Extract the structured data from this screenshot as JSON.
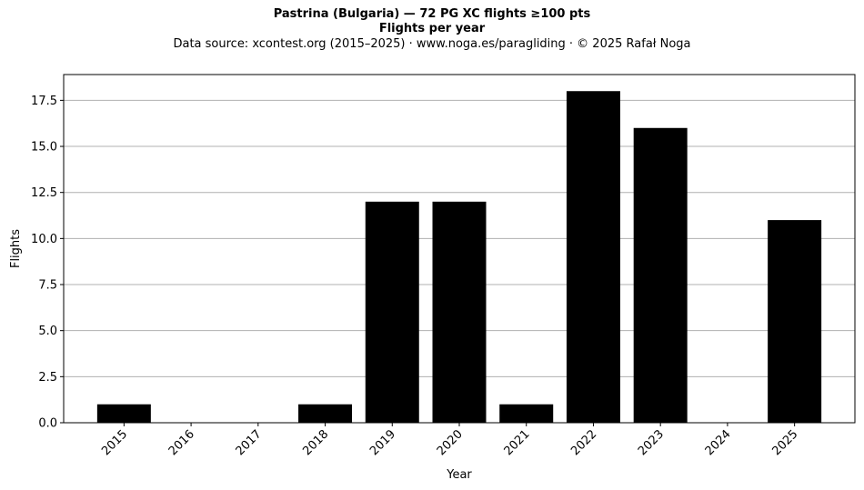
{
  "chart_data": {
    "type": "bar",
    "title": "Pastrina (Bulgaria)  —  72 PG XC flights ≥100 pts",
    "subtitle": "Flights per year",
    "source": "Data source: xcontest.org (2015–2025)  ·  www.noga.es/paragliding  ·  © 2025 Rafał Noga",
    "xlabel": "Year",
    "ylabel": "Flights",
    "categories": [
      "2015",
      "2016",
      "2017",
      "2018",
      "2019",
      "2020",
      "2021",
      "2022",
      "2023",
      "2024",
      "2025"
    ],
    "values": [
      1,
      0,
      0,
      1,
      12,
      12,
      1,
      18,
      16,
      0,
      11
    ],
    "ylim": [
      0,
      18.9
    ],
    "yticks": [
      0.0,
      2.5,
      5.0,
      7.5,
      10.0,
      12.5,
      15.0,
      17.5
    ],
    "ytick_labels": [
      "0.0",
      "2.5",
      "5.0",
      "7.5",
      "10.0",
      "12.5",
      "15.0",
      "17.5"
    ],
    "grid": "horizontal",
    "bar_color": "#000000",
    "grid_color": "#b0b0b0"
  }
}
